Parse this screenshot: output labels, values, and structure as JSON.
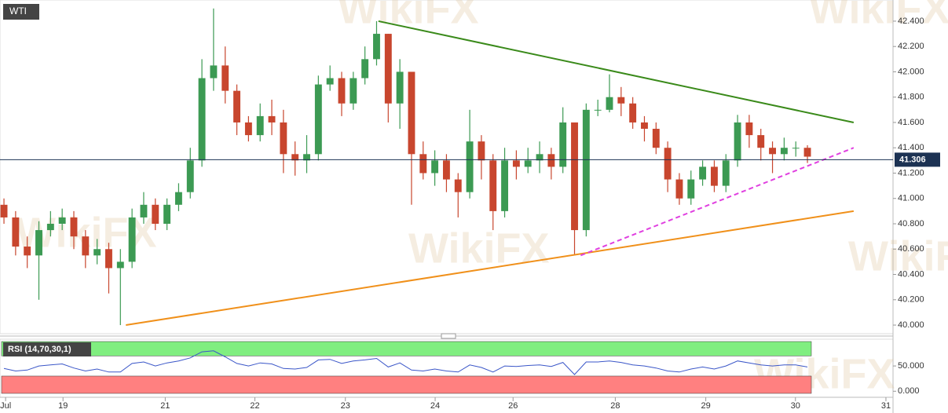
{
  "chart_data": {
    "type": "candlestick",
    "title": "WTI",
    "open": [
      40.95,
      40.85,
      40.62,
      40.55,
      40.75,
      40.8,
      40.85,
      40.7,
      40.55,
      40.6,
      40.45,
      40.5,
      40.85,
      40.95,
      40.8,
      40.95,
      41.05,
      41.3,
      41.95,
      42.05,
      41.85,
      41.6,
      41.5,
      41.65,
      41.6,
      41.35,
      41.3,
      41.35,
      41.9,
      41.95,
      41.75,
      41.95,
      42.1,
      42.3,
      41.75,
      42.0,
      41.35,
      41.2,
      41.3,
      41.15,
      41.05,
      41.45,
      41.3,
      40.9,
      41.3,
      41.25,
      41.3,
      41.35,
      41.25,
      41.6,
      40.75,
      41.7,
      41.7,
      41.8,
      41.75,
      41.6,
      41.55,
      41.4,
      41.15,
      41.0,
      41.15,
      41.25,
      41.1,
      41.3,
      41.6,
      41.5,
      41.4,
      41.35,
      41.4,
      41.4
    ],
    "high": [
      41.0,
      40.9,
      40.7,
      40.82,
      40.9,
      40.92,
      40.9,
      40.75,
      40.68,
      40.65,
      40.6,
      40.92,
      41.05,
      41.0,
      41.0,
      41.12,
      41.4,
      42.1,
      42.5,
      42.2,
      41.9,
      41.65,
      41.75,
      41.78,
      41.7,
      41.45,
      41.5,
      41.97,
      42.05,
      42.0,
      42.0,
      42.2,
      42.4,
      42.3,
      42.1,
      42.0,
      41.45,
      41.38,
      41.35,
      41.2,
      41.7,
      41.5,
      41.35,
      41.4,
      41.38,
      41.4,
      41.45,
      41.4,
      41.72,
      41.6,
      41.75,
      41.78,
      41.98,
      41.88,
      41.8,
      41.65,
      41.6,
      41.45,
      41.2,
      41.22,
      41.3,
      41.3,
      41.35,
      41.66,
      41.66,
      41.55,
      41.45,
      41.48,
      41.45,
      41.42
    ],
    "low": [
      40.8,
      40.55,
      40.45,
      40.2,
      40.7,
      40.75,
      40.6,
      40.45,
      40.48,
      40.25,
      40.0,
      40.45,
      40.8,
      40.75,
      40.75,
      40.9,
      41.0,
      41.25,
      41.85,
      41.75,
      41.5,
      41.45,
      41.45,
      41.5,
      41.2,
      41.18,
      41.2,
      41.3,
      41.85,
      41.65,
      41.7,
      41.9,
      42.05,
      41.6,
      41.55,
      40.95,
      41.15,
      41.1,
      41.05,
      40.85,
      41.0,
      41.15,
      40.75,
      40.85,
      41.15,
      41.2,
      41.2,
      41.15,
      41.2,
      40.55,
      40.7,
      41.65,
      41.68,
      41.65,
      41.55,
      41.45,
      41.35,
      41.05,
      40.95,
      40.95,
      41.1,
      41.05,
      41.05,
      41.25,
      41.4,
      41.3,
      41.2,
      41.3,
      41.33,
      41.28
    ],
    "close": [
      40.85,
      40.62,
      40.55,
      40.75,
      40.8,
      40.85,
      40.7,
      40.55,
      40.6,
      40.45,
      40.5,
      40.85,
      40.95,
      40.8,
      40.95,
      41.05,
      41.3,
      41.95,
      42.05,
      41.85,
      41.6,
      41.5,
      41.65,
      41.6,
      41.35,
      41.3,
      41.35,
      41.9,
      41.95,
      41.75,
      41.95,
      42.1,
      42.3,
      41.75,
      42.0,
      41.35,
      41.2,
      41.3,
      41.15,
      41.05,
      41.45,
      41.3,
      40.9,
      41.3,
      41.25,
      41.3,
      41.35,
      41.25,
      41.6,
      40.75,
      41.7,
      41.7,
      41.8,
      41.75,
      41.6,
      41.55,
      41.4,
      41.15,
      41.0,
      41.15,
      41.25,
      41.1,
      41.3,
      41.6,
      41.5,
      41.4,
      41.35,
      41.4,
      41.4,
      41.33
    ],
    "up_color": "#3c9a53",
    "down_color": "#c8462e",
    "last_price": 41.306,
    "last_price_color": "#1c3253",
    "xlim": [
      -0.34,
      76.35
    ],
    "ylim": [
      39.932,
      42.567
    ],
    "yticks": [
      {
        "value": 40.0,
        "label": "40.000"
      },
      {
        "value": 40.2,
        "label": "40.200"
      },
      {
        "value": 40.4,
        "label": "40.400"
      },
      {
        "value": 40.6,
        "label": "40.600"
      },
      {
        "value": 40.8,
        "label": "40.800"
      },
      {
        "value": 41.0,
        "label": "41.000"
      },
      {
        "value": 41.2,
        "label": "41.200"
      },
      {
        "value": 41.4,
        "label": "41.400"
      },
      {
        "value": 41.6,
        "label": "41.600"
      },
      {
        "value": 41.8,
        "label": "41.800"
      },
      {
        "value": 42.0,
        "label": "42.000"
      },
      {
        "value": 42.2,
        "label": "42.200"
      },
      {
        "value": 42.4,
        "label": "42.400"
      }
    ],
    "xticks": [
      {
        "value": 0.14,
        "label": "Jul"
      },
      {
        "value": 5.07,
        "label": "19"
      },
      {
        "value": 13.85,
        "label": "21"
      },
      {
        "value": 21.55,
        "label": "22"
      },
      {
        "value": 29.32,
        "label": "23"
      },
      {
        "value": 37.03,
        "label": "24"
      },
      {
        "value": 43.72,
        "label": "26"
      },
      {
        "value": 52.5,
        "label": "28"
      },
      {
        "value": 60.27,
        "label": "29"
      },
      {
        "value": 67.97,
        "label": "30"
      },
      {
        "value": 75.74,
        "label": "31"
      }
    ],
    "lines": [
      {
        "color": "#3a8a1a",
        "dash": false,
        "from": [
          32.16,
          42.4
        ],
        "to": [
          72.97,
          41.6
        ]
      },
      {
        "color": "#f0901a",
        "dash": false,
        "from": [
          10.47,
          40.0
        ],
        "to": [
          72.97,
          40.9
        ]
      },
      {
        "color": "#e040e0",
        "dash": true,
        "from": [
          49.53,
          40.55
        ],
        "to": [
          72.97,
          41.4
        ]
      }
    ],
    "rsi": {
      "label": "RSI (14,70,30,1)",
      "color": "#3a56c8",
      "overbought": 70,
      "oversold": 30,
      "overbought_color": "#80ee80",
      "oversold_color": "#ff8080",
      "ylim": [
        -12,
        103
      ],
      "yticks": [
        {
          "value": 0,
          "label": "0.000"
        },
        {
          "value": 50,
          "label": "50.000"
        }
      ],
      "values": [
        45,
        40,
        42,
        50,
        52,
        54,
        46,
        40,
        44,
        38,
        38,
        55,
        58,
        50,
        56,
        60,
        66,
        78,
        80,
        68,
        55,
        50,
        56,
        54,
        45,
        44,
        47,
        62,
        63,
        55,
        60,
        62,
        65,
        48,
        56,
        42,
        40,
        44,
        40,
        38,
        52,
        47,
        38,
        50,
        49,
        51,
        52,
        49,
        57,
        33,
        58,
        58,
        60,
        57,
        52,
        50,
        46,
        40,
        38,
        44,
        48,
        44,
        50,
        60,
        56,
        52,
        50,
        52,
        52,
        48
      ]
    },
    "watermark": "WikiFX"
  }
}
